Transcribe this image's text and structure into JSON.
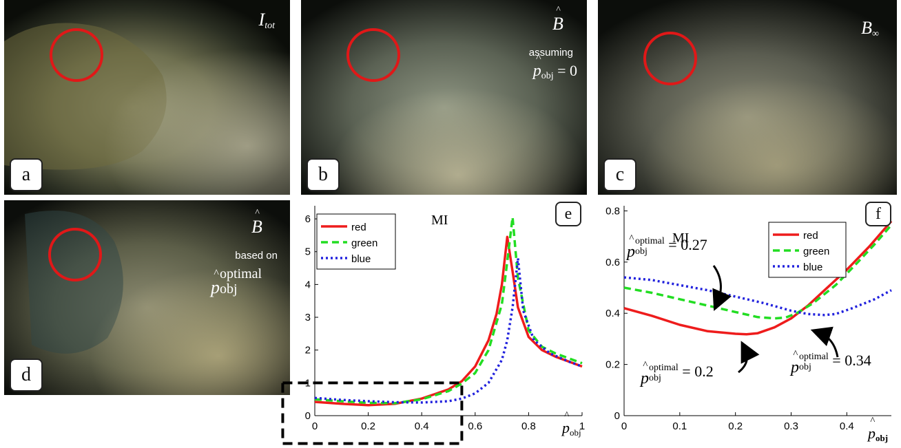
{
  "panels": {
    "a": {
      "letter": "a",
      "label_main": "I",
      "label_sub": "tot"
    },
    "b": {
      "letter": "b",
      "label_main": "B",
      "label_hat": "^",
      "caption": "assuming",
      "formula_p": "p",
      "formula_hat": "^",
      "formula_sub": "obj",
      "formula_rest": " = 0"
    },
    "c": {
      "letter": "c",
      "label_main": "B",
      "label_sub": "∞"
    },
    "d": {
      "letter": "d",
      "label_main": "B",
      "label_hat": "^",
      "caption": "based on",
      "formula_p": "p",
      "formula_hat": "^",
      "formula_sup": "optimal",
      "formula_sub": "obj"
    },
    "e": {
      "letter": "e",
      "plot_title": "MI",
      "xlabel_p": "p",
      "xlabel_hat": "^",
      "xlabel_sub": "obj"
    },
    "f": {
      "letter": "f",
      "plot_title": "MI",
      "xlabel_p": "p",
      "xlabel_hat": "^",
      "xlabel_sub": "obj",
      "annotations": [
        {
          "p": "p",
          "hat": "^",
          "sup": "optimal",
          "sub": "obj",
          "rest": " = 0.27"
        },
        {
          "p": "p",
          "hat": "^",
          "sup": "optimal",
          "sub": "obj",
          "rest": " = 0.2"
        },
        {
          "p": "p",
          "hat": "^",
          "sup": "optimal",
          "sub": "obj",
          "rest": " = 0.34"
        }
      ]
    }
  },
  "colors": {
    "red": "#ee1c1c",
    "green": "#22dd22",
    "blue": "#2222dd",
    "circle": "#e01818"
  },
  "chart_data": [
    {
      "type": "line",
      "panel": "e",
      "title": "MI",
      "xlabel": "p̂obj",
      "ylabel": "",
      "xlim": [
        0,
        1
      ],
      "ylim": [
        0,
        6.4
      ],
      "xticks": [
        "0",
        "0.2",
        "0.4",
        "0.6",
        "0.8",
        "1"
      ],
      "yticks": [
        "0",
        "1",
        "2",
        "3",
        "4",
        "5",
        "6"
      ],
      "legend": "top-left",
      "series": [
        {
          "name": "red",
          "style": "solid",
          "x": [
            0,
            0.1,
            0.2,
            0.3,
            0.4,
            0.5,
            0.55,
            0.6,
            0.65,
            0.68,
            0.7,
            0.72,
            0.74,
            0.76,
            0.8,
            0.85,
            0.9,
            1.0
          ],
          "y": [
            0.42,
            0.36,
            0.32,
            0.36,
            0.52,
            0.8,
            1.05,
            1.5,
            2.3,
            3.1,
            4.0,
            5.45,
            4.4,
            3.3,
            2.4,
            2.0,
            1.8,
            1.5
          ]
        },
        {
          "name": "green",
          "style": "dashed",
          "x": [
            0,
            0.1,
            0.2,
            0.3,
            0.4,
            0.5,
            0.55,
            0.6,
            0.65,
            0.7,
            0.72,
            0.74,
            0.76,
            0.8,
            0.85,
            0.9,
            1.0
          ],
          "y": [
            0.5,
            0.44,
            0.39,
            0.38,
            0.5,
            0.75,
            0.98,
            1.3,
            2.0,
            3.4,
            4.7,
            6.05,
            4.2,
            2.6,
            2.1,
            1.9,
            1.6
          ]
        },
        {
          "name": "blue",
          "style": "dotted",
          "x": [
            0,
            0.1,
            0.2,
            0.3,
            0.4,
            0.5,
            0.55,
            0.6,
            0.65,
            0.7,
            0.72,
            0.74,
            0.76,
            0.78,
            0.82,
            0.88,
            0.95,
            1.0
          ],
          "y": [
            0.54,
            0.48,
            0.44,
            0.41,
            0.4,
            0.44,
            0.52,
            0.68,
            1.0,
            1.7,
            2.3,
            3.3,
            4.8,
            3.2,
            2.3,
            1.9,
            1.65,
            1.5
          ]
        }
      ],
      "highlight_box": {
        "x": [
          -0.12,
          0.55
        ],
        "y": [
          -0.85,
          1.0
        ]
      }
    },
    {
      "type": "line",
      "panel": "f",
      "title": "MI",
      "xlabel": "p̂obj",
      "ylabel": "",
      "xlim": [
        0,
        0.48
      ],
      "ylim": [
        0,
        0.82
      ],
      "xticks": [
        "0",
        "0.1",
        "0.2",
        "0.3",
        "0.4"
      ],
      "yticks": [
        "0",
        "0.2",
        "0.4",
        "0.6",
        "0.8"
      ],
      "legend": "top-right",
      "series": [
        {
          "name": "red",
          "style": "solid",
          "x": [
            0,
            0.05,
            0.1,
            0.15,
            0.2,
            0.22,
            0.24,
            0.27,
            0.3,
            0.33,
            0.36,
            0.4,
            0.44,
            0.48
          ],
          "y": [
            0.42,
            0.39,
            0.355,
            0.33,
            0.32,
            0.318,
            0.322,
            0.345,
            0.38,
            0.43,
            0.49,
            0.57,
            0.66,
            0.76
          ]
        },
        {
          "name": "green",
          "style": "dashed",
          "x": [
            0,
            0.05,
            0.1,
            0.15,
            0.2,
            0.24,
            0.27,
            0.29,
            0.31,
            0.34,
            0.38,
            0.42,
            0.45,
            0.48
          ],
          "y": [
            0.5,
            0.48,
            0.455,
            0.43,
            0.405,
            0.385,
            0.38,
            0.383,
            0.4,
            0.44,
            0.51,
            0.6,
            0.67,
            0.745
          ]
        },
        {
          "name": "blue",
          "style": "dotted",
          "x": [
            0,
            0.05,
            0.1,
            0.15,
            0.2,
            0.25,
            0.3,
            0.33,
            0.36,
            0.38,
            0.41,
            0.45,
            0.48
          ],
          "y": [
            0.54,
            0.53,
            0.51,
            0.49,
            0.465,
            0.44,
            0.41,
            0.397,
            0.393,
            0.397,
            0.42,
            0.455,
            0.49
          ]
        }
      ]
    }
  ]
}
